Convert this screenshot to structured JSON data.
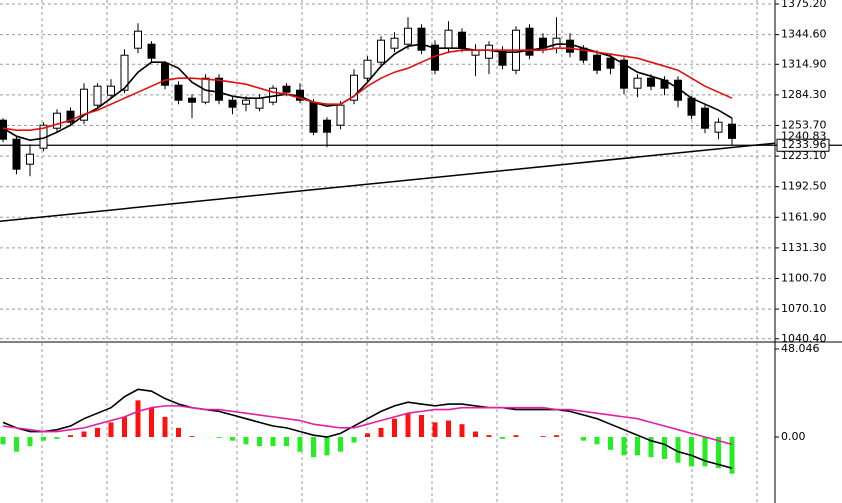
{
  "chart_data": [
    {
      "type": "candlestick",
      "ylim": [
        1039.2,
        1379.2
      ],
      "yticks": [
        {
          "value": 1375.2,
          "label": "1375.20"
        },
        {
          "value": 1344.6,
          "label": "1344.60"
        },
        {
          "value": 1314.9,
          "label": "1314.90"
        },
        {
          "value": 1284.3,
          "label": "1284.30"
        },
        {
          "value": 1253.7,
          "label": "1253.70"
        },
        {
          "value": 1223.1,
          "label": "1223.10"
        },
        {
          "value": 1192.5,
          "label": "1192.50"
        },
        {
          "value": 1161.9,
          "label": "1161.90"
        },
        {
          "value": 1131.3,
          "label": "1131.30"
        },
        {
          "value": 1100.7,
          "label": "1100.70"
        },
        {
          "value": 1070.1,
          "label": "1070.10"
        },
        {
          "value": 1040.4,
          "label": "1040.40"
        }
      ],
      "grid": true,
      "open": [
        1259,
        1240,
        1215,
        1231,
        1251,
        1268,
        1259,
        1274,
        1284,
        1289,
        1331,
        1335,
        1316,
        1294,
        1281,
        1277,
        1301,
        1279,
        1275,
        1271,
        1277,
        1293,
        1289,
        1277,
        1259,
        1254,
        1279,
        1301,
        1317,
        1331,
        1335,
        1351,
        1334,
        1331,
        1347,
        1324,
        1321,
        1329,
        1309,
        1351,
        1341,
        1331,
        1339,
        1331,
        1324,
        1321,
        1319,
        1291,
        1301,
        1299,
        1299,
        1281,
        1271,
        1247,
        1255
      ],
      "high": [
        1261,
        1243,
        1235,
        1257,
        1270,
        1272,
        1296,
        1296,
        1300,
        1330,
        1356,
        1338,
        1318,
        1298,
        1285,
        1305,
        1305,
        1283,
        1283,
        1285,
        1294,
        1296,
        1296,
        1280,
        1262,
        1278,
        1310,
        1323,
        1343,
        1347,
        1362,
        1355,
        1339,
        1358,
        1351,
        1335,
        1338,
        1333,
        1353,
        1355,
        1346,
        1362,
        1346,
        1334,
        1329,
        1326,
        1322,
        1305,
        1305,
        1303,
        1303,
        1283,
        1275,
        1261,
        1261
      ],
      "low": [
        1237,
        1205,
        1203,
        1228,
        1246,
        1254,
        1255,
        1270,
        1280,
        1286,
        1326,
        1317,
        1290,
        1275,
        1261,
        1275,
        1275,
        1265,
        1268,
        1268,
        1274,
        1283,
        1276,
        1244,
        1232,
        1250,
        1275,
        1297,
        1312,
        1327,
        1330,
        1325,
        1305,
        1326,
        1327,
        1303,
        1305,
        1310,
        1305,
        1320,
        1326,
        1326,
        1322,
        1316,
        1305,
        1305,
        1285,
        1282,
        1289,
        1284,
        1272,
        1260,
        1246,
        1240,
        1234
      ],
      "close": [
        1240,
        1210,
        1225,
        1254,
        1266,
        1257,
        1290,
        1293,
        1293,
        1324,
        1348,
        1321,
        1294,
        1279,
        1277,
        1301,
        1279,
        1272,
        1279,
        1281,
        1291,
        1287,
        1279,
        1247,
        1247,
        1274,
        1304,
        1319,
        1339,
        1341,
        1351,
        1329,
        1309,
        1349,
        1331,
        1329,
        1334,
        1314,
        1349,
        1324,
        1331,
        1341,
        1327,
        1319,
        1309,
        1311,
        1291,
        1301,
        1293,
        1291,
        1279,
        1264,
        1251,
        1257,
        1240.83
      ],
      "series": [
        {
          "color": "#000000",
          "values": [
            1251,
            1243,
            1239,
            1241,
            1247,
            1254,
            1264,
            1271,
            1281,
            1291,
            1307,
            1317,
            1317,
            1311,
            1297,
            1289,
            1287,
            1283,
            1281,
            1281,
            1283,
            1285,
            1283,
            1277,
            1273,
            1275,
            1283,
            1297,
            1313,
            1325,
            1333,
            1335,
            1331,
            1331,
            1331,
            1329,
            1329,
            1327,
            1327,
            1329,
            1331,
            1335,
            1335,
            1331,
            1327,
            1323,
            1315,
            1307,
            1303,
            1299,
            1291,
            1281,
            1275,
            1269,
            1261
          ]
        },
        {
          "color": "#e01010",
          "values": [
            1251,
            1249,
            1249,
            1251,
            1255,
            1259,
            1265,
            1269,
            1275,
            1281,
            1287,
            1293,
            1299,
            1301,
            1301,
            1300,
            1299,
            1297,
            1295,
            1291,
            1287,
            1285,
            1281,
            1277,
            1275,
            1275,
            1283,
            1293,
            1301,
            1307,
            1311,
            1317,
            1323,
            1327,
            1329,
            1329,
            1329,
            1329,
            1329,
            1329,
            1329,
            1331,
            1331,
            1329,
            1327,
            1325,
            1323,
            1321,
            1317,
            1313,
            1309,
            1301,
            1293,
            1287,
            1281
          ]
        }
      ],
      "hline": {
        "value": 1233.96,
        "label": "1233.96"
      },
      "last": {
        "value": 1240.83,
        "label": "1240.83"
      },
      "trendline": [
        1158,
        1236
      ]
    },
    {
      "type": "macd",
      "ylim": [
        -36,
        51.3
      ],
      "yticks": [
        {
          "value": 48.046,
          "label": "48.046"
        },
        {
          "value": 0,
          "label": "0.00"
        }
      ],
      "up_color": "#ff1010",
      "down_color": "#22ee22",
      "values": [
        -4,
        -8,
        -5,
        -2,
        -1,
        1,
        3,
        5,
        8,
        11,
        20,
        16,
        11,
        5,
        0.5,
        0,
        -0.5,
        -2,
        -4,
        -5,
        -5,
        -5,
        -8,
        -11,
        -10,
        -8,
        -3,
        2,
        5,
        10,
        13,
        12,
        8,
        9,
        7,
        3,
        1,
        -1,
        1,
        0,
        0.5,
        1,
        0,
        -2,
        -4,
        -7,
        -10,
        -10,
        -11,
        -12,
        -14,
        -16,
        -16,
        -17,
        -20
      ],
      "series": [
        {
          "color": "#000000",
          "values": [
            8,
            5,
            3,
            3,
            4,
            6,
            10,
            13,
            16,
            22,
            26,
            25,
            21,
            18,
            16,
            15,
            14,
            12,
            10,
            8,
            6,
            5,
            3,
            1,
            0,
            2,
            6,
            10,
            14,
            17,
            19,
            18,
            17,
            18,
            18,
            17,
            16,
            16,
            15,
            15,
            15,
            15,
            14,
            12,
            10,
            7,
            4,
            1,
            -2,
            -4,
            -8,
            -10,
            -13,
            -15,
            -17
          ]
        },
        {
          "color": "#e020a0",
          "values": [
            6,
            5,
            4,
            3,
            3,
            4,
            5,
            7,
            9,
            11,
            14,
            16,
            17,
            17,
            16,
            15,
            15,
            14,
            13,
            12,
            11,
            10,
            9,
            7,
            6,
            5,
            5,
            7,
            9,
            11,
            13,
            14,
            15,
            15,
            16,
            16,
            16,
            16,
            16,
            16,
            16,
            15,
            15,
            14,
            13,
            12,
            11,
            10,
            8,
            6,
            4,
            2,
            0,
            -2,
            -4
          ]
        }
      ]
    }
  ]
}
